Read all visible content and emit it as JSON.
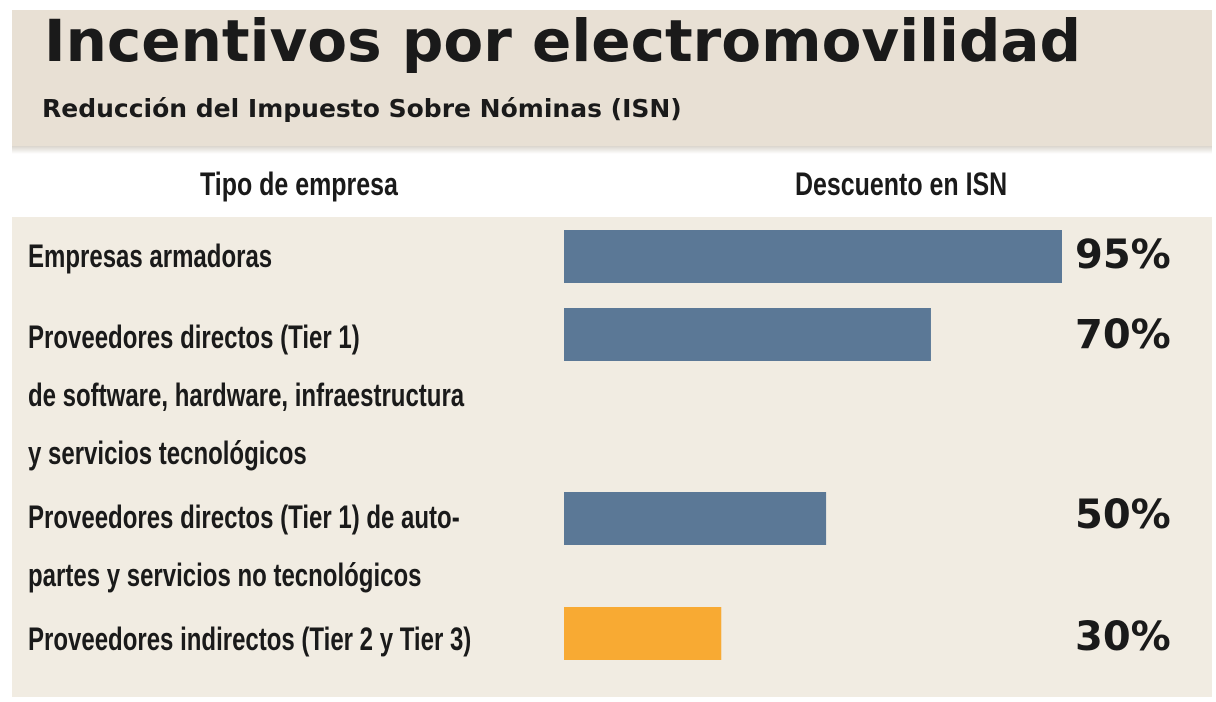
{
  "header": {
    "title": "Incentivos por electromovilidad",
    "subtitle": "Reducción del Impuesto Sobre Nóminas (ISN)"
  },
  "columns": {
    "left": "Tipo de empresa",
    "right": "Descuento en ISN"
  },
  "chart_data": {
    "type": "bar",
    "orientation": "horizontal",
    "title": "Incentivos por electromovilidad",
    "subtitle": "Reducción del Impuesto Sobre Nóminas (ISN)",
    "xlabel": "Descuento en ISN",
    "ylabel": "Tipo de empresa",
    "xlim": [
      0,
      95
    ],
    "categories": [
      "Empresas armadoras",
      "Proveedores directos (Tier 1)\nde software, hardware, infraestructura\ny servicios tecnológicos",
      "Proveedores directos (Tier 1) de auto-\npartes y servicios no tecnológicos",
      "Proveedores indirectos (Tier 2 y Tier 3)"
    ],
    "values": [
      95,
      70,
      50,
      30
    ],
    "value_labels": [
      "95%",
      "70%",
      "50%",
      "30%"
    ],
    "colors": [
      "#5b7896",
      "#5b7896",
      "#5b7896",
      "#f8aa33"
    ],
    "grid": false
  }
}
